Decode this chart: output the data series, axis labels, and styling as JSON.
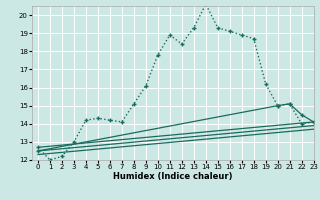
{
  "title": "",
  "xlabel": "Humidex (Indice chaleur)",
  "bg_color": "#cce8e4",
  "line_color": "#1a6b5e",
  "grid_color": "#ffffff",
  "xlim": [
    -0.5,
    23
  ],
  "ylim": [
    12,
    20.5
  ],
  "yticks": [
    12,
    13,
    14,
    15,
    16,
    17,
    18,
    19,
    20
  ],
  "xticks": [
    0,
    1,
    2,
    3,
    4,
    5,
    6,
    7,
    8,
    9,
    10,
    11,
    12,
    13,
    14,
    15,
    16,
    17,
    18,
    19,
    20,
    21,
    22,
    23
  ],
  "line1_x": [
    0,
    1,
    2,
    3,
    4,
    5,
    6,
    7,
    8,
    9,
    10,
    11,
    12,
    13,
    14,
    15,
    16,
    17,
    18,
    19,
    20,
    21,
    22,
    23
  ],
  "line1_y": [
    12.7,
    12.0,
    12.2,
    13.0,
    14.2,
    14.3,
    14.2,
    14.1,
    15.1,
    16.1,
    17.8,
    18.9,
    18.4,
    19.3,
    20.6,
    19.3,
    19.1,
    18.9,
    18.7,
    16.2,
    15.0,
    15.1,
    14.0,
    14.1
  ],
  "line2_x": [
    0,
    23
  ],
  "line2_y": [
    12.7,
    14.1
  ],
  "line3_x": [
    0,
    23
  ],
  "line3_y": [
    12.5,
    13.9
  ],
  "line4_x": [
    0,
    23
  ],
  "line4_y": [
    12.3,
    13.7
  ],
  "line5_x": [
    0,
    20,
    21,
    22,
    23
  ],
  "line5_y": [
    12.5,
    15.0,
    15.1,
    14.5,
    14.1
  ]
}
